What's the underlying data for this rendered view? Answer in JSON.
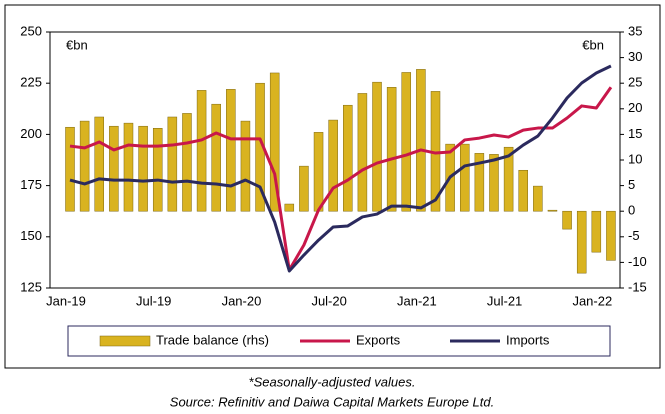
{
  "chart_data": {
    "type": "bar",
    "y_label": "€bn",
    "y2_label": "€bn",
    "categories": [
      "Jan-19",
      null,
      null,
      null,
      null,
      null,
      "Jul-19",
      null,
      null,
      null,
      null,
      null,
      "Jan-20",
      null,
      null,
      null,
      null,
      null,
      "Jul-20",
      null,
      null,
      null,
      null,
      null,
      "Jan-21",
      null,
      null,
      null,
      null,
      null,
      "Jul-21",
      null,
      null,
      null,
      null,
      null,
      "Jan-22",
      null
    ],
    "series": [
      {
        "name": "Trade balance (rhs)",
        "type": "bar",
        "axis": "y2",
        "color": "#d9b320",
        "values": [
          16.4,
          17.6,
          18.4,
          16.6,
          17.2,
          16.6,
          16.2,
          18.4,
          19.1,
          23.6,
          20.9,
          23.8,
          17.6,
          25,
          27,
          1.4,
          8.8,
          15.4,
          17.8,
          20.7,
          23,
          25.2,
          24.2,
          27.1,
          27.7,
          23.4,
          13.1,
          13.1,
          11.3,
          11.1,
          12.5,
          8,
          4.9,
          0.2,
          -3.5,
          -12.1,
          -8,
          -9.6
        ]
      },
      {
        "name": "Exports",
        "type": "line",
        "color": "#c8174a",
        "values": [
          194.3,
          193.4,
          196.3,
          192.4,
          194.8,
          194.3,
          194.3,
          194.8,
          195.8,
          197.3,
          200.7,
          197.8,
          197.8,
          197.8,
          180.7,
          133.8,
          146,
          163.1,
          173.8,
          177.7,
          182.6,
          186,
          188,
          189.9,
          192.4,
          190.9,
          191.4,
          197.3,
          198.2,
          199.7,
          198.7,
          202.1,
          203.1,
          203.1,
          208,
          213.9,
          212.9,
          223
        ]
      },
      {
        "name": "Imports",
        "type": "line",
        "color": "#2b2a5e",
        "values": [
          177.7,
          175.8,
          178.3,
          177.7,
          177.7,
          177.2,
          177.7,
          176.7,
          177.2,
          176.2,
          175.8,
          174.8,
          177.7,
          174.3,
          157.2,
          133.3,
          141.1,
          148.4,
          154.8,
          155.3,
          159.7,
          161.1,
          165,
          165,
          164.1,
          168,
          179.2,
          184.6,
          186,
          187.5,
          189.5,
          194.8,
          199.2,
          208,
          217.8,
          225.1,
          230,
          233.4
        ]
      }
    ],
    "ylim": [
      125,
      250
    ],
    "yticks": [
      125,
      150,
      175,
      200,
      225,
      250
    ],
    "y2lim": [
      -15,
      35
    ],
    "y2ticks": [
      -15,
      -10,
      -5,
      0,
      5,
      10,
      15,
      20,
      25,
      30,
      35
    ],
    "notes": [
      "*Seasonally-adjusted values.",
      "Source: Refinitiv and Daiwa Capital Markets Europe Ltd."
    ]
  }
}
